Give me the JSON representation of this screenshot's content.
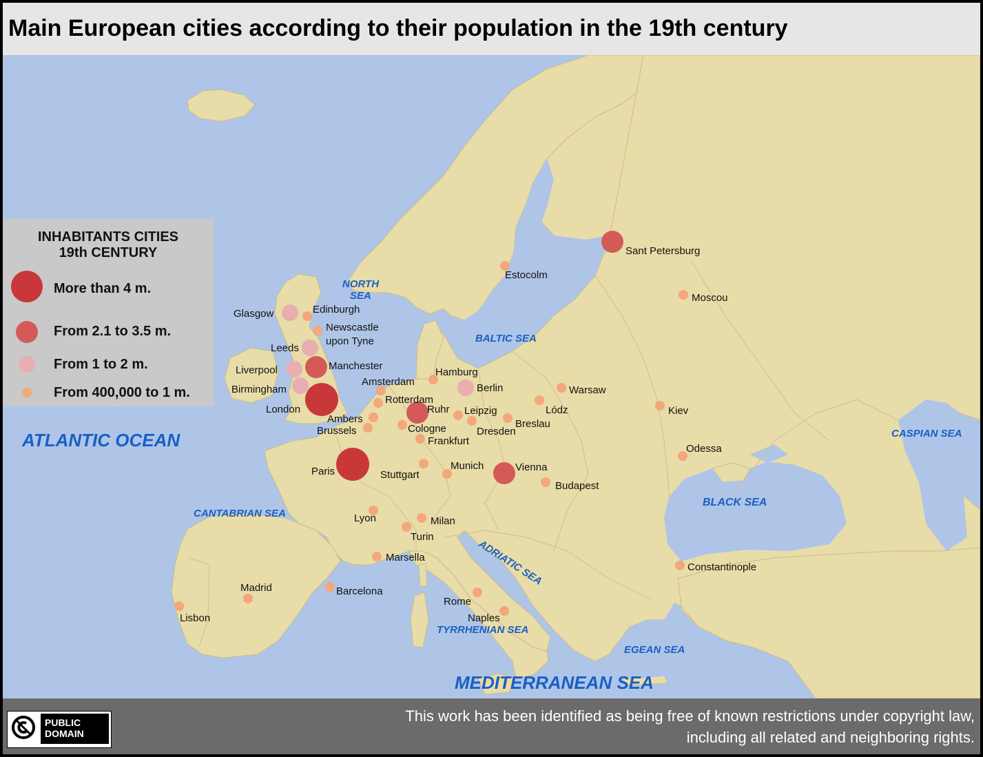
{
  "title": "Main European cities according to their population in the 19th century",
  "colors": {
    "sea": "#aec5e8",
    "land": "#e8dca8",
    "sea_label": "#1a5fc4",
    "more_than_4m": "#c8383a",
    "from_2_1_to_3_5m": "#d45a58",
    "from_1_to_2m": "#e8aeb0",
    "from_400k_to_1m": "#f4a77a"
  },
  "legend": {
    "title_line1": "INHABITANTS CITIES",
    "title_line2": "19th CENTURY",
    "classes": [
      {
        "key": "xl",
        "label": "More than 4 m."
      },
      {
        "key": "l",
        "label": "From 2.1 to 3.5 m."
      },
      {
        "key": "m",
        "label": "From 1 to 2 m."
      },
      {
        "key": "s",
        "label": "From 400,000 to 1 m."
      }
    ]
  },
  "seas": {
    "atlantic": "ATLANTIC OCEAN",
    "north_sea_1": "NORTH",
    "north_sea_2": "SEA",
    "baltic": "BALTIC SEA",
    "cantabrian": "CANTABRIAN SEA",
    "adriatic": "ADRIATIC SEA",
    "tyrrhenian": "TYRRHENIAN SEA",
    "black": "BLACK SEA",
    "caspian": "CASPIAN SEA",
    "egean": "EGEAN SEA",
    "mediterranean": "MEDITERRANEAN SEA"
  },
  "cities": {
    "london": {
      "label": "London",
      "class": "xl"
    },
    "paris": {
      "label": "Paris",
      "class": "xl"
    },
    "sant_petersburg": {
      "label": "Sant Petersburg",
      "class": "l"
    },
    "manchester": {
      "label": "Manchester",
      "class": "l"
    },
    "ruhr": {
      "label": "Ruhr",
      "class": "l"
    },
    "vienna": {
      "label": "Vienna",
      "class": "l"
    },
    "glasgow": {
      "label": "Glasgow",
      "class": "m"
    },
    "leeds": {
      "label": "Leeds",
      "class": "m"
    },
    "liverpool": {
      "label": "Liverpool",
      "class": "m"
    },
    "birmingham": {
      "label": "Birmingham",
      "class": "m"
    },
    "berlin": {
      "label": "Berlin",
      "class": "m"
    },
    "edinburgh": {
      "label": "Edinburgh",
      "class": "s"
    },
    "newcastle_1": {
      "label": "Newscastle",
      "class": "s"
    },
    "newcastle_2": {
      "label": "upon Tyne"
    },
    "estocolm": {
      "label": "Estocolm",
      "class": "s"
    },
    "moscou": {
      "label": "Moscou",
      "class": "s"
    },
    "amsterdam": {
      "label": "Amsterdam",
      "class": "s"
    },
    "rotterdam": {
      "label": "Rotterdam",
      "class": "s"
    },
    "ambers": {
      "label": "Ambers",
      "class": "s"
    },
    "brussels": {
      "label": "Brussels",
      "class": "s"
    },
    "hamburg": {
      "label": "Hamburg",
      "class": "s"
    },
    "cologne": {
      "label": "Cologne",
      "class": "s"
    },
    "frankfurt": {
      "label": "Frankfurt",
      "class": "s"
    },
    "leipzig": {
      "label": "Leipzig",
      "class": "s"
    },
    "dresden": {
      "label": "Dresden",
      "class": "s"
    },
    "breslau": {
      "label": "Breslau",
      "class": "s"
    },
    "lodz": {
      "label": "Lódz",
      "class": "s"
    },
    "warsaw": {
      "label": "Warsaw",
      "class": "s"
    },
    "kiev": {
      "label": "Kiev",
      "class": "s"
    },
    "odessa": {
      "label": "Odessa",
      "class": "s"
    },
    "stuttgart": {
      "label": "Stuttgart",
      "class": "s"
    },
    "munich": {
      "label": "Munich",
      "class": "s"
    },
    "budapest": {
      "label": "Budapest",
      "class": "s"
    },
    "lyon": {
      "label": "Lyon",
      "class": "s"
    },
    "milan": {
      "label": "Milan",
      "class": "s"
    },
    "turin": {
      "label": "Turin",
      "class": "s"
    },
    "marsella": {
      "label": "Marsella",
      "class": "s"
    },
    "barcelona": {
      "label": "Barcelona",
      "class": "s"
    },
    "madrid": {
      "label": "Madrid",
      "class": "s"
    },
    "lisbon": {
      "label": "Lisbon",
      "class": "s"
    },
    "rome": {
      "label": "Rome",
      "class": "s"
    },
    "naples": {
      "label": "Naples",
      "class": "s"
    },
    "constantinople": {
      "label": "Constantinople",
      "class": "s"
    }
  },
  "footer": {
    "badge_line1": "PUBLIC",
    "badge_line2": "DOMAIN",
    "badge_icon": "public-domain-icon",
    "notice_line1": "This work has been identified as being free of known restrictions under copyright law,",
    "notice_line2": "including all related and neighboring rights."
  }
}
